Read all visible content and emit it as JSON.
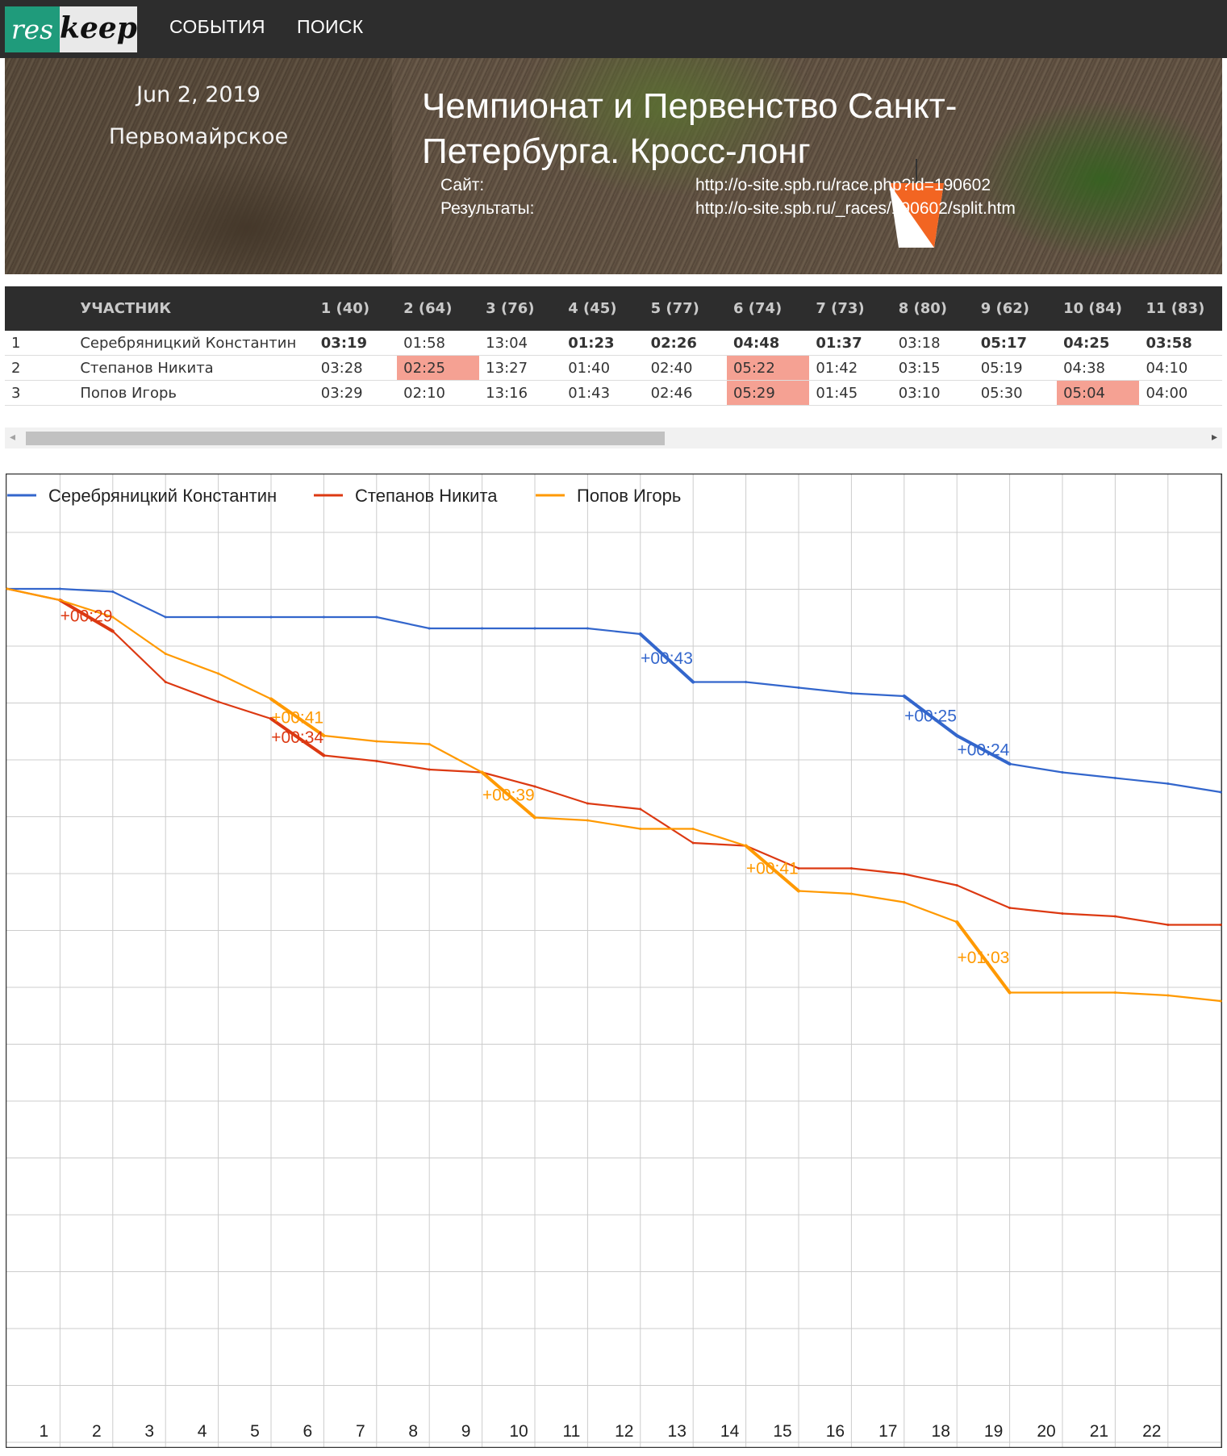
{
  "nav": {
    "logo_res": "res",
    "logo_keep": "keep",
    "events": "СОБЫТИЯ",
    "search": "ПОИСК"
  },
  "event": {
    "date": "Jun 2, 2019",
    "place": "Первомайрское",
    "title": "Чемпионат и Первенство Санкт-Петербурга. Кросс-лонг",
    "site_label": "Сайт:",
    "site_url": "http://o-site.spb.ru/race.php?id=190602",
    "results_label": "Результаты:",
    "results_url": "http://o-site.spb.ru/_races/190602/split.htm"
  },
  "table": {
    "participant_header": "УЧАСТНИК",
    "controls": [
      "1 (40)",
      "2 (64)",
      "3 (76)",
      "4 (45)",
      "5 (77)",
      "6 (74)",
      "7 (73)",
      "8 (80)",
      "9 (62)",
      "10 (84)",
      "11 (83)"
    ],
    "rows": [
      {
        "place": "1",
        "name": "Серебряницкий Константин",
        "splits": [
          "03:19",
          "01:58",
          "13:04",
          "01:23",
          "02:26",
          "04:48",
          "01:37",
          "03:18",
          "05:17",
          "04:25",
          "03:58"
        ],
        "best": [
          true,
          false,
          false,
          true,
          true,
          true,
          true,
          false,
          true,
          true,
          true
        ],
        "lost": [
          false,
          false,
          false,
          false,
          false,
          false,
          false,
          false,
          false,
          false,
          false
        ]
      },
      {
        "place": "2",
        "name": "Степанов Никита",
        "splits": [
          "03:28",
          "02:25",
          "13:27",
          "01:40",
          "02:40",
          "05:22",
          "01:42",
          "03:15",
          "05:19",
          "04:38",
          "04:10"
        ],
        "best": [
          false,
          false,
          false,
          false,
          false,
          false,
          false,
          false,
          false,
          false,
          false
        ],
        "lost": [
          false,
          true,
          false,
          false,
          false,
          true,
          false,
          false,
          false,
          false,
          false
        ]
      },
      {
        "place": "3",
        "name": "Попов Игорь",
        "splits": [
          "03:29",
          "02:10",
          "13:16",
          "01:43",
          "02:46",
          "05:29",
          "01:45",
          "03:10",
          "05:30",
          "05:04",
          "04:00"
        ],
        "best": [
          false,
          false,
          false,
          false,
          false,
          false,
          false,
          false,
          false,
          false,
          false
        ],
        "lost": [
          false,
          false,
          false,
          false,
          false,
          true,
          false,
          false,
          false,
          true,
          false
        ]
      }
    ]
  },
  "scrollbar": {
    "left_arrow": "◂",
    "right_arrow": "▸",
    "thumb_fraction": 0.52
  },
  "colors": {
    "series_1": "#3366cc",
    "series_2": "#dc3912",
    "series_3": "#ff9900",
    "lost_cell": "#f5a193"
  },
  "chart_data": {
    "type": "line",
    "x": [
      0,
      1,
      2,
      3,
      4,
      5,
      6,
      7,
      8,
      9,
      10,
      11,
      12,
      13,
      14,
      15,
      16,
      17,
      18,
      19,
      20,
      21,
      22,
      23
    ],
    "x_tick_labels": [
      "1",
      "2",
      "3",
      "4",
      "5",
      "6",
      "7",
      "8",
      "9",
      "10",
      "11",
      "12",
      "13",
      "14",
      "15",
      "16",
      "17",
      "18",
      "19",
      "20",
      "21",
      "22"
    ],
    "ylim": [
      0,
      240
    ],
    "grid": true,
    "legend_position": "top-left",
    "series": [
      {
        "name": "Серебряницкий Константин",
        "color": "#3366cc",
        "values": [
          0,
          0,
          1,
          10,
          10,
          10,
          10,
          10,
          14,
          14,
          14,
          14,
          16,
          33,
          33,
          35,
          37,
          38,
          52,
          62,
          65,
          67,
          69,
          72
        ],
        "annotations": [
          {
            "segment": 13,
            "text": "+00:43"
          },
          {
            "segment": 18,
            "text": "+00:25"
          },
          {
            "segment": 19,
            "text": "+00:24"
          }
        ]
      },
      {
        "name": "Степанов Никита",
        "color": "#dc3912",
        "values": [
          0,
          4,
          15,
          33,
          40,
          46,
          59,
          61,
          64,
          65,
          70,
          76,
          78,
          90,
          91,
          99,
          99,
          101,
          105,
          113,
          115,
          116,
          119,
          119
        ],
        "annotations": [
          {
            "segment": 2,
            "text": "+00:29"
          },
          {
            "segment": 6,
            "text": "+00:34"
          }
        ]
      },
      {
        "name": "Попов Игорь",
        "color": "#ff9900",
        "values": [
          0,
          4,
          10,
          23,
          30,
          39,
          52,
          54,
          55,
          65,
          81,
          82,
          85,
          85,
          91,
          107,
          108,
          111,
          118,
          143,
          143,
          143,
          144,
          146
        ],
        "annotations": [
          {
            "segment": 6,
            "text": "+00:41"
          },
          {
            "segment": 10,
            "text": "+00:39"
          },
          {
            "segment": 15,
            "text": "+00:41"
          },
          {
            "segment": 19,
            "text": "+01:03"
          }
        ]
      }
    ]
  }
}
